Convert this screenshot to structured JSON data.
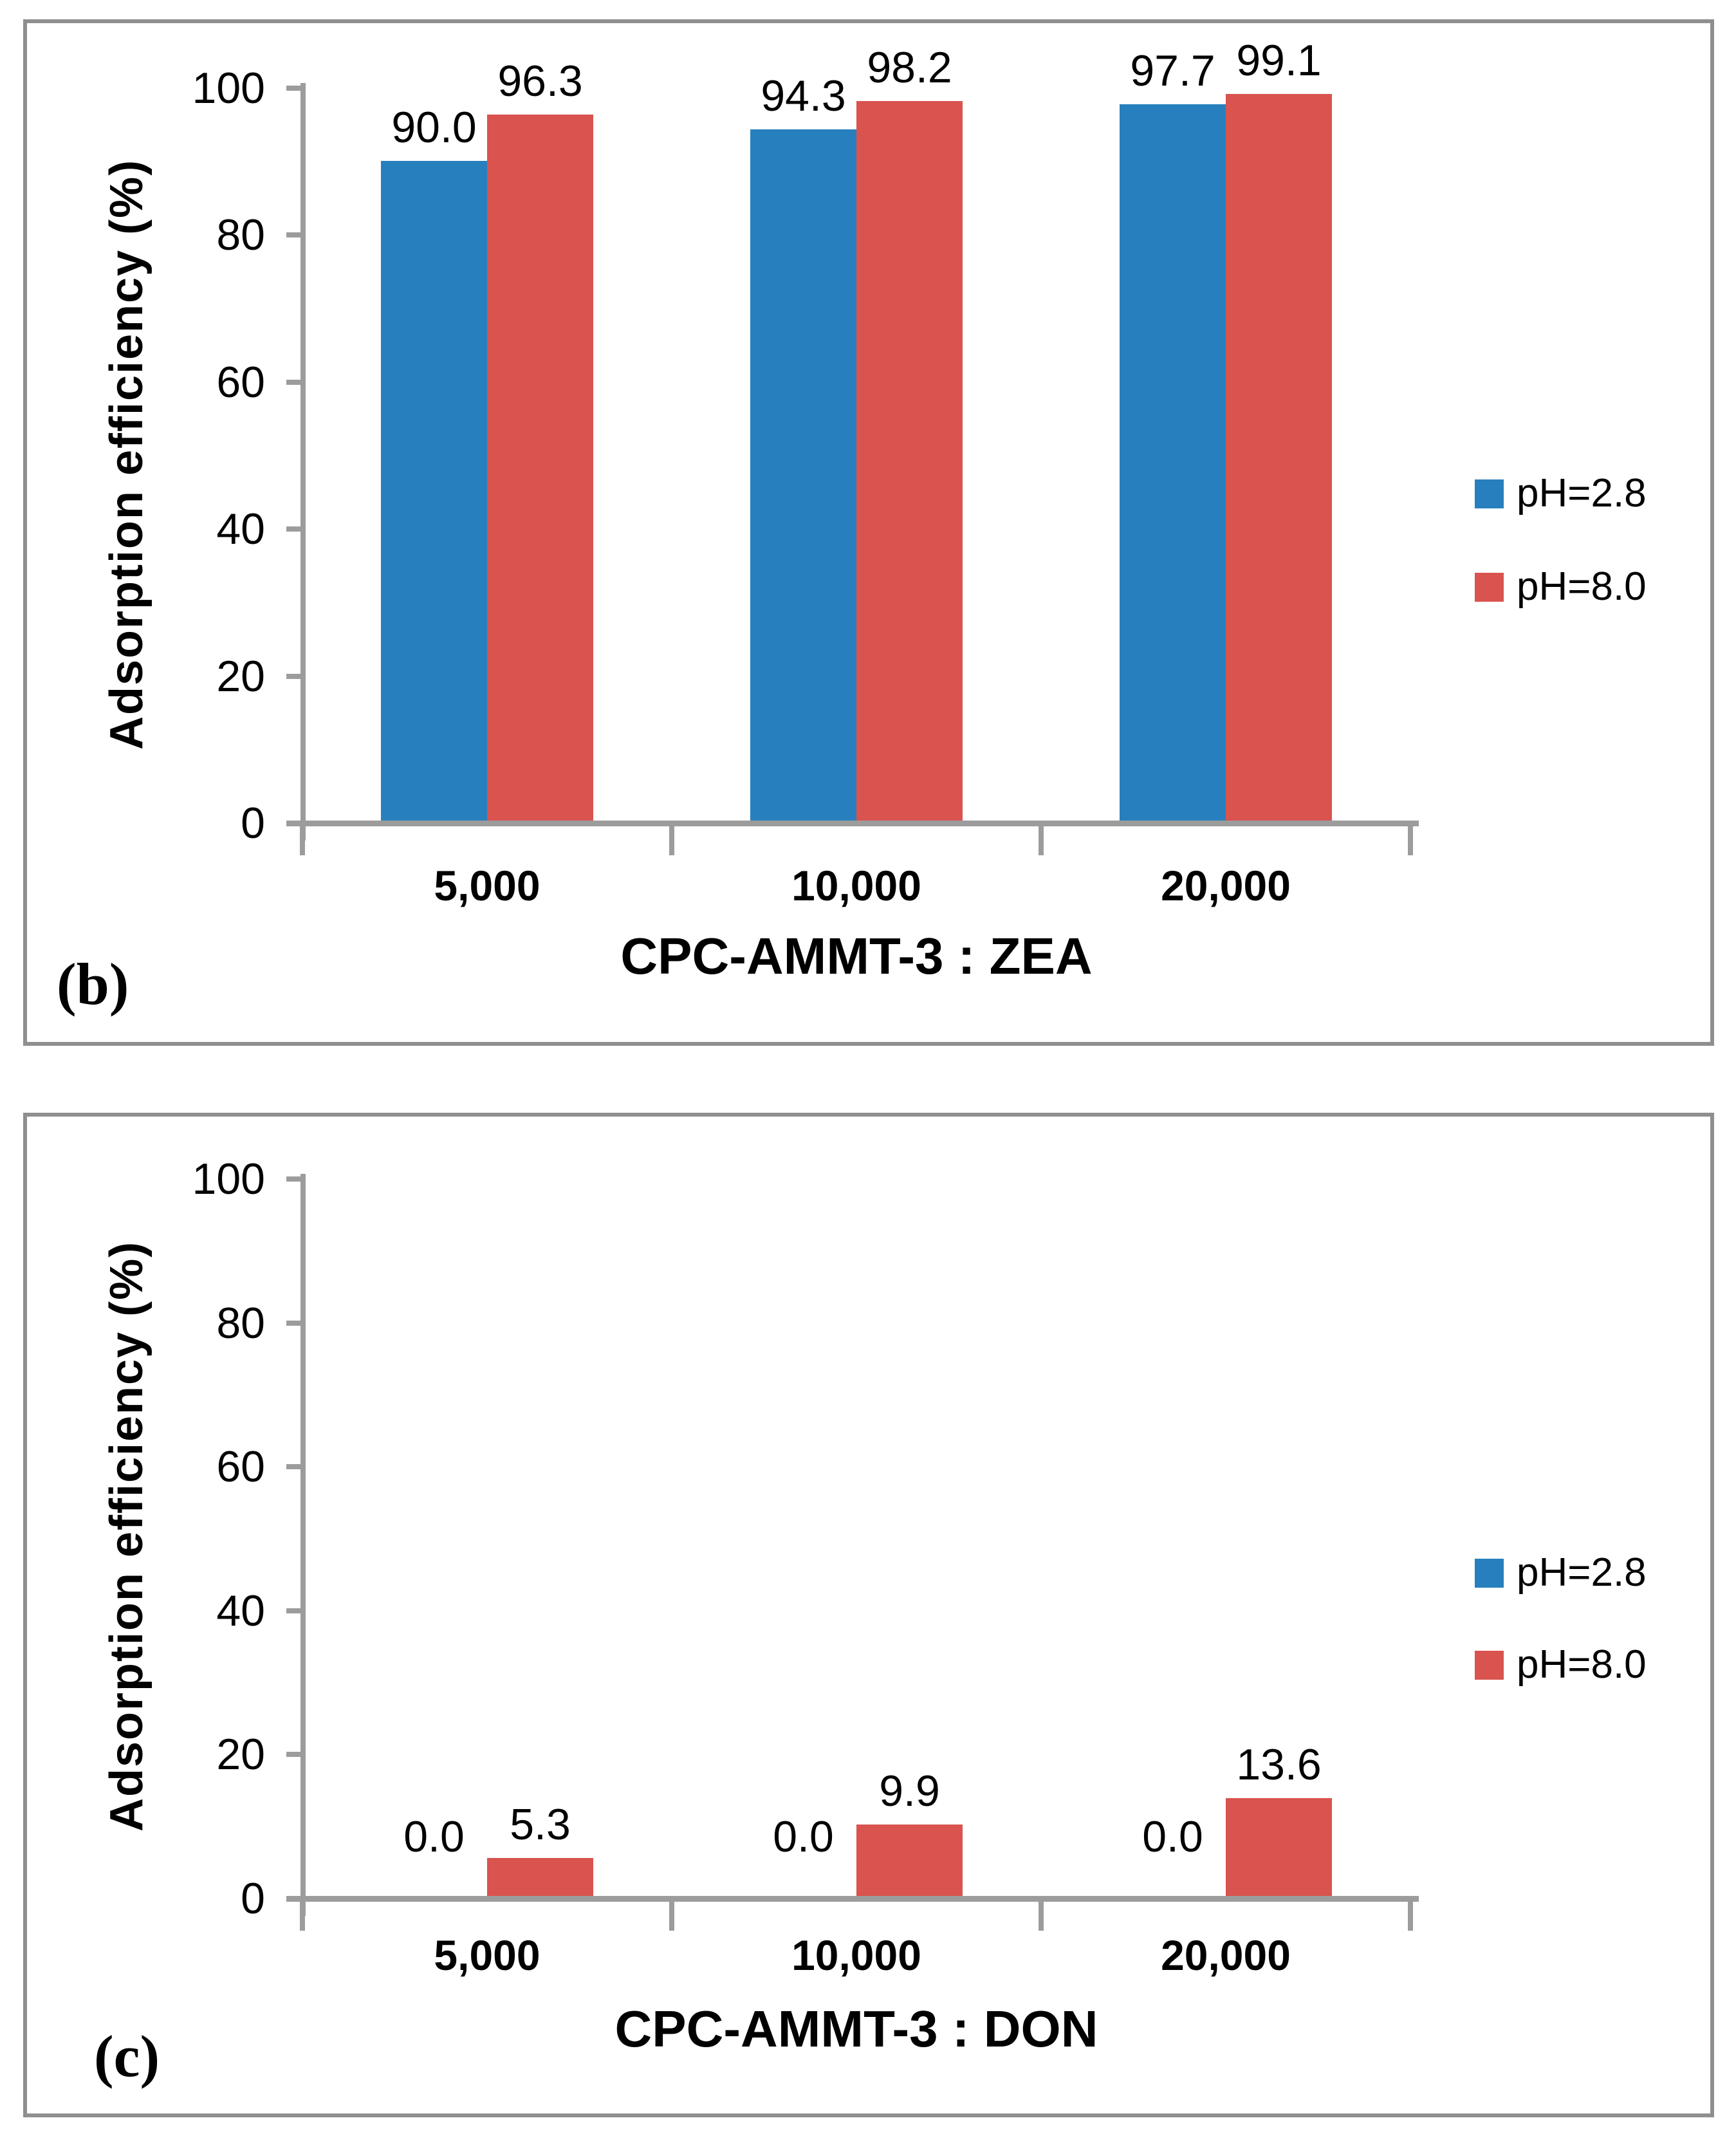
{
  "colors": {
    "series_ph28": "#2780BD",
    "series_ph80": "#D9534F",
    "axis_gray": "#9C9C9C",
    "panel_border_gray": "#8F8F8F"
  },
  "chart_data": [
    {
      "type": "bar",
      "panel_letter": "(b)",
      "title": "",
      "xlabel": "CPC-AMMT-3 : ZEA",
      "ylabel": "Adsorption efficiency (%)",
      "ylim": [
        0,
        100
      ],
      "yticks": [
        "0",
        "20",
        "40",
        "60",
        "80",
        "100"
      ],
      "categories": [
        "5,000",
        "10,000",
        "20,000"
      ],
      "grid": false,
      "legend_position": "right",
      "series": [
        {
          "name": "pH=2.8",
          "color": "#2780BD",
          "values": [
            90.0,
            94.3,
            97.7
          ],
          "labels": [
            "90.0",
            "94.3",
            "97.7"
          ]
        },
        {
          "name": "pH=8.0",
          "color": "#D9534F",
          "values": [
            96.3,
            98.2,
            99.1
          ],
          "labels": [
            "96.3",
            "98.2",
            "99.1"
          ]
        }
      ]
    },
    {
      "type": "bar",
      "panel_letter": "(c)",
      "title": "",
      "xlabel": "CPC-AMMT-3 : DON",
      "ylabel": "Adsorption efficiency (%)",
      "ylim": [
        0,
        100
      ],
      "yticks": [
        "0",
        "20",
        "40",
        "60",
        "80",
        "100"
      ],
      "categories": [
        "5,000",
        "10,000",
        "20,000"
      ],
      "grid": false,
      "legend_position": "right",
      "series": [
        {
          "name": "pH=2.8",
          "color": "#2780BD",
          "values": [
            0.0,
            0.0,
            0.0
          ],
          "labels": [
            "0.0",
            "0.0",
            "0.0"
          ]
        },
        {
          "name": "pH=8.0",
          "color": "#D9534F",
          "values": [
            5.3,
            9.9,
            13.6
          ],
          "labels": [
            "5.3",
            "9.9",
            "13.6"
          ]
        }
      ]
    }
  ]
}
